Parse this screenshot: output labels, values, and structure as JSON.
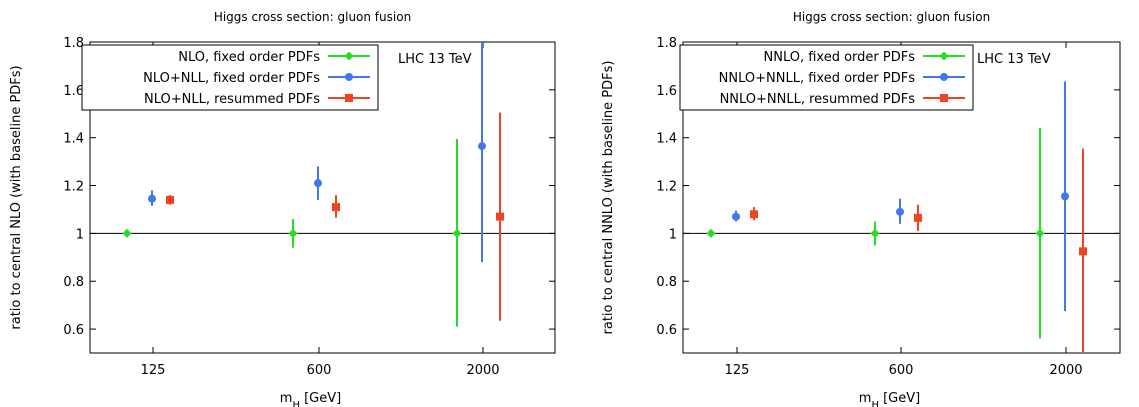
{
  "chart_data": [
    {
      "type": "scatter",
      "title": "Higgs cross section: gluon fusion",
      "xlabel_main": "m",
      "xlabel_sub": "H",
      "xlabel_unit": " [GeV]",
      "ylabel": "ratio to central NLO (with baseline PDFs)",
      "annotation": "LHC 13 TeV",
      "categories": [
        "125",
        "600",
        "2000"
      ],
      "ylim": [
        0.5,
        1.8
      ],
      "yticks": [
        "0.6",
        "0.8",
        "1",
        "1.2",
        "1.4",
        "1.6",
        "1.8"
      ],
      "reference_line": 1,
      "legend_position": "top-left",
      "series": [
        {
          "name": "NLO, fixed order PDFs",
          "color": "#22dd22",
          "marker": "diamond",
          "values": [
            1.0,
            1.0,
            1.0
          ],
          "lower": [
            0.985,
            0.94,
            0.61
          ],
          "upper": [
            1.015,
            1.06,
            1.395
          ]
        },
        {
          "name": "NLO+NLL, fixed order PDFs",
          "color": "#4477ee",
          "marker": "circle",
          "values": [
            1.145,
            1.21,
            1.365
          ],
          "lower": [
            1.115,
            1.14,
            0.88
          ],
          "upper": [
            1.18,
            1.28,
            1.82
          ]
        },
        {
          "name": "NLO+NLL, resummed PDFs",
          "color": "#ee4422",
          "marker": "square",
          "values": [
            1.14,
            1.11,
            1.07
          ],
          "lower": [
            1.12,
            1.065,
            0.635
          ],
          "upper": [
            1.16,
            1.16,
            1.505
          ]
        }
      ]
    },
    {
      "type": "scatter",
      "title": "Higgs cross section: gluon fusion",
      "xlabel_main": "m",
      "xlabel_sub": "H",
      "xlabel_unit": " [GeV]",
      "ylabel": "ratio to central NNLO (with baseline PDFs)",
      "annotation": "LHC 13 TeV",
      "categories": [
        "125",
        "600",
        "2000"
      ],
      "ylim": [
        0.5,
        1.8
      ],
      "yticks": [
        "0.6",
        "0.8",
        "1",
        "1.2",
        "1.4",
        "1.6",
        "1.8"
      ],
      "reference_line": 1,
      "legend_position": "top-left",
      "series": [
        {
          "name": "NNLO, fixed order PDFs",
          "color": "#22dd22",
          "marker": "diamond",
          "values": [
            1.0,
            1.0,
            1.0
          ],
          "lower": [
            0.985,
            0.95,
            0.56
          ],
          "upper": [
            1.015,
            1.05,
            1.44
          ]
        },
        {
          "name": "NNLO+NNLL, fixed order PDFs",
          "color": "#4477ee",
          "marker": "circle",
          "values": [
            1.07,
            1.09,
            1.155
          ],
          "lower": [
            1.05,
            1.04,
            0.675
          ],
          "upper": [
            1.095,
            1.145,
            1.635
          ]
        },
        {
          "name": "NNLO+NNLL, resummed PDFs",
          "color": "#ee4422",
          "marker": "square",
          "values": [
            1.08,
            1.065,
            0.925
          ],
          "lower": [
            1.055,
            1.01,
            0.5
          ],
          "upper": [
            1.11,
            1.12,
            1.355
          ]
        }
      ]
    }
  ]
}
